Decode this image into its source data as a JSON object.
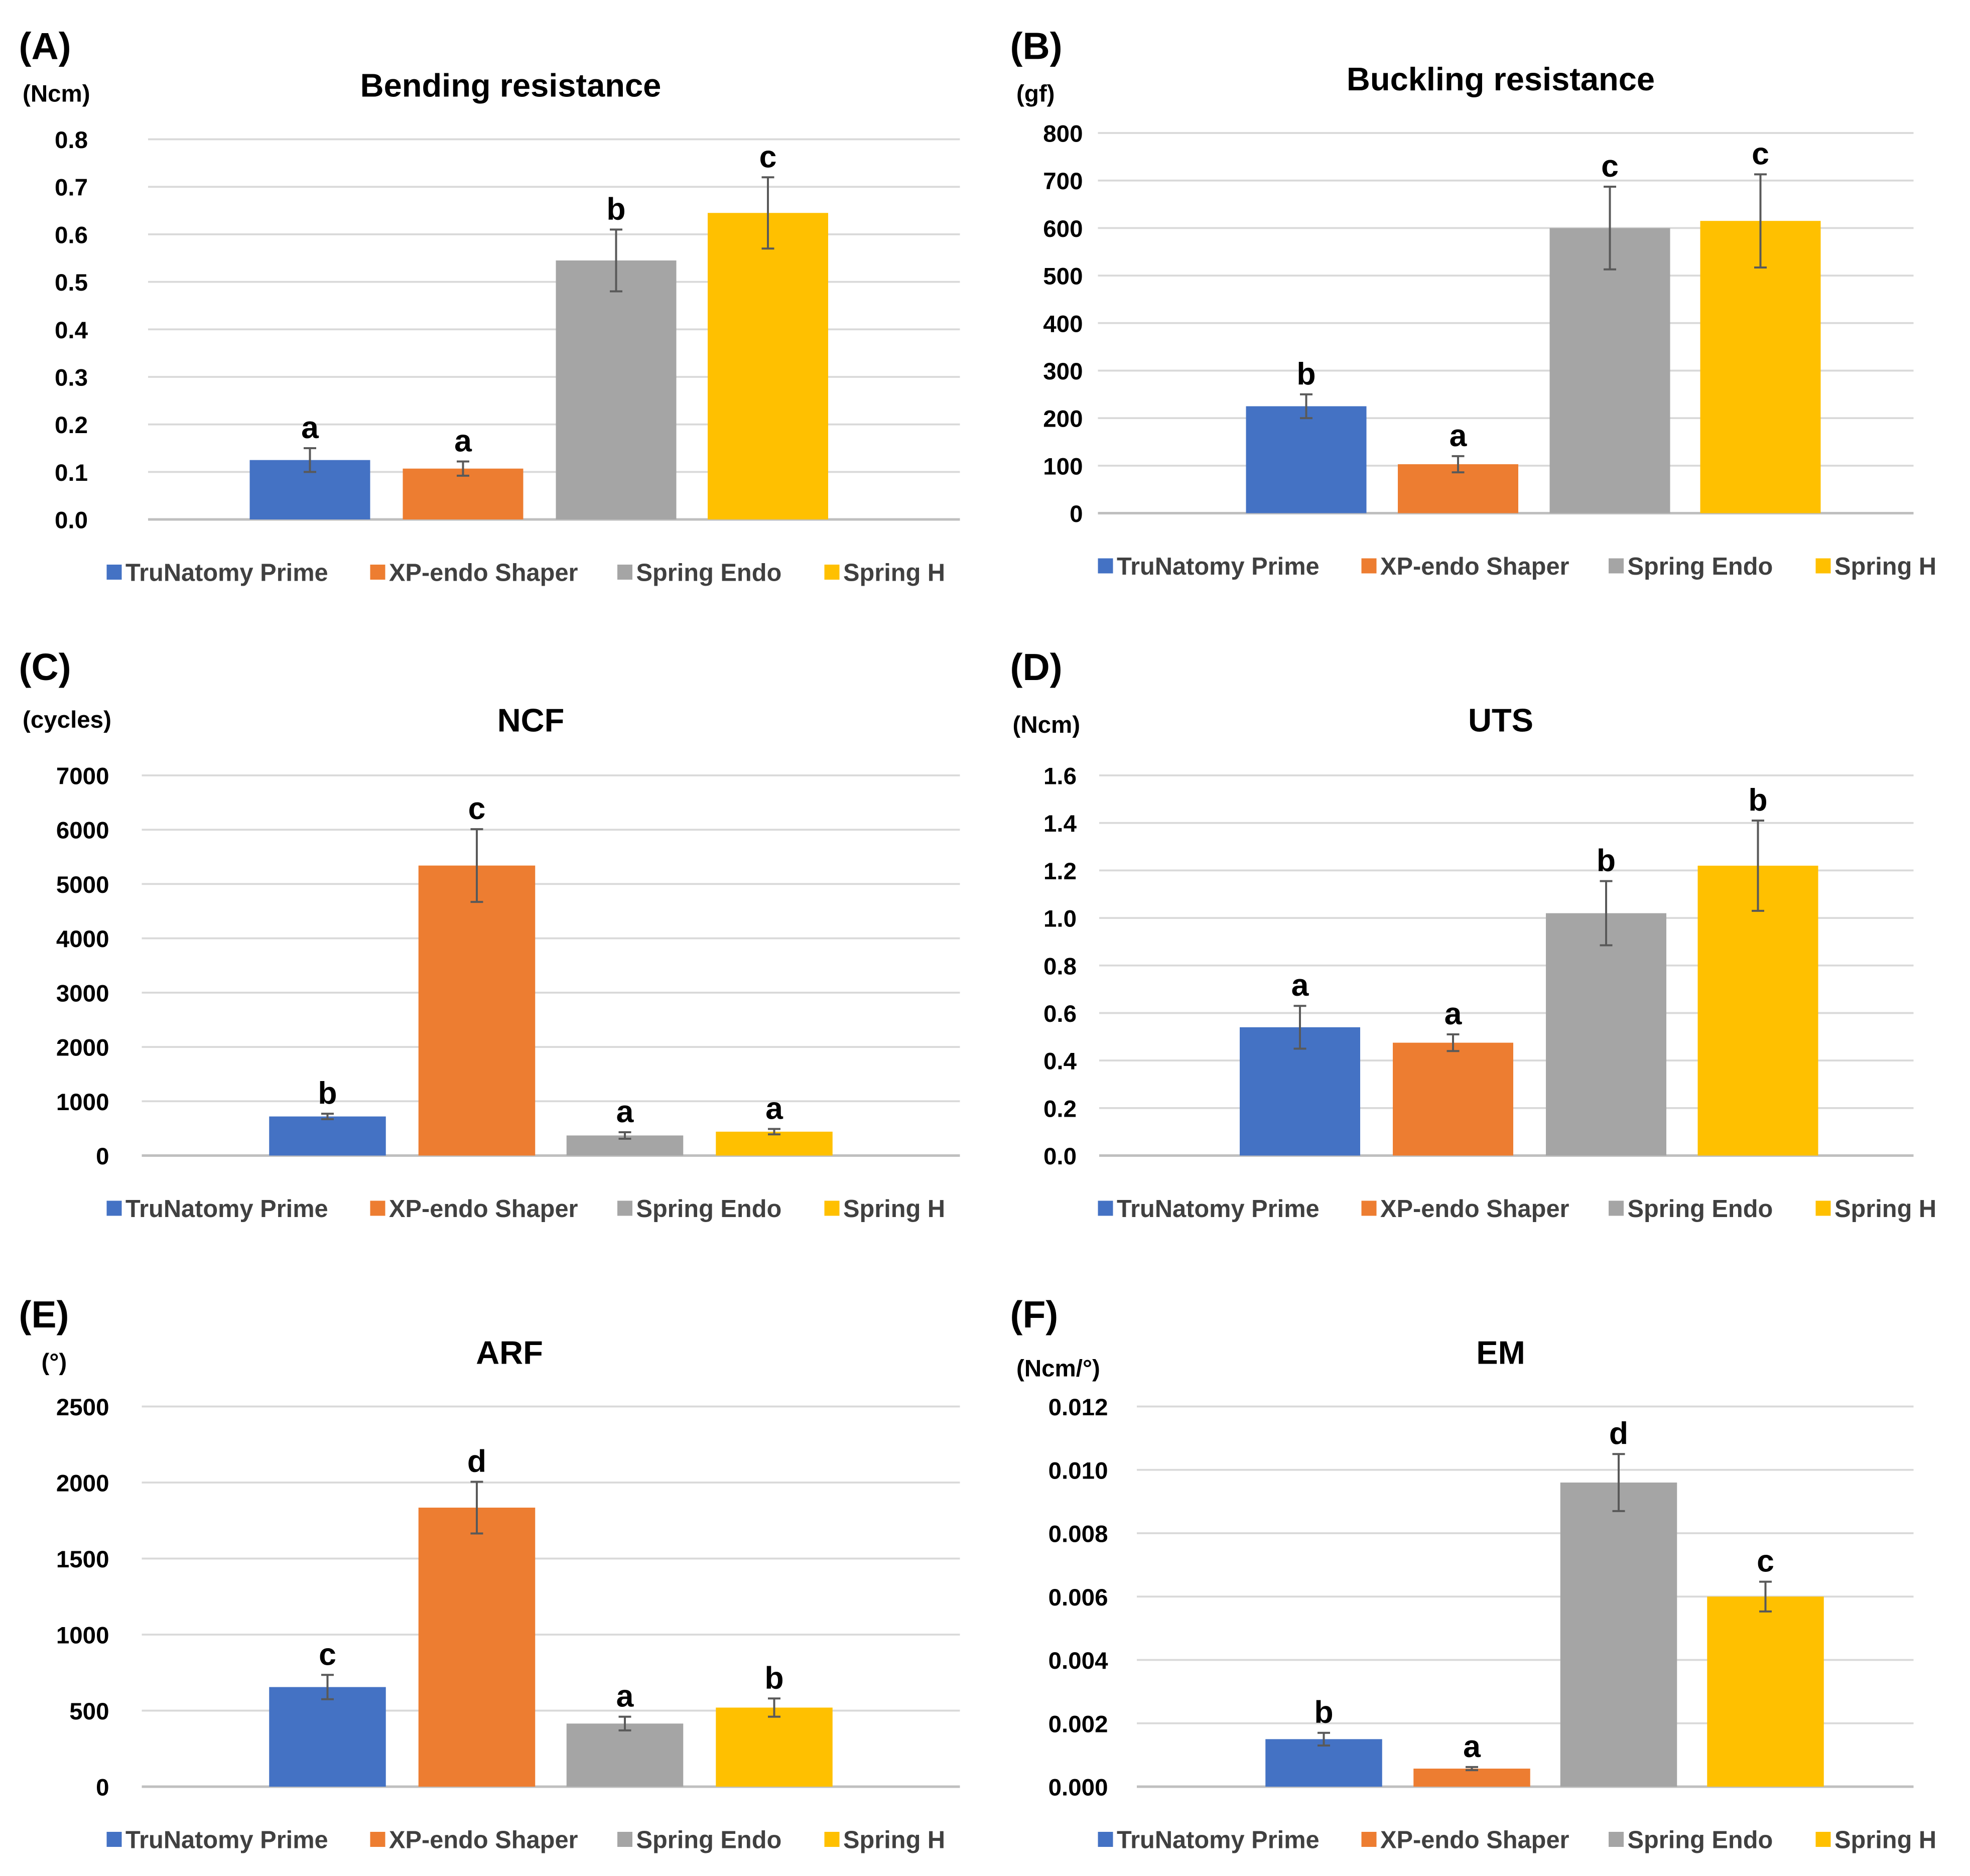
{
  "figure": {
    "legend_entries": [
      "TruNatomy Prime",
      "XP-endo Shaper",
      "Spring Endo",
      "Spring H"
    ],
    "series_colors": [
      "#4472C4",
      "#ED7D31",
      "#A5A5A5",
      "#FFC000"
    ],
    "gridline_color": "#D9D9D9",
    "axis_line_color": "#BFBFBF",
    "error_bar_color": "#595959",
    "text_color": "#000000"
  },
  "chart_data": [
    {
      "panel": "(A)",
      "type": "bar",
      "title": "Bending resistance",
      "unit": "(Ncm)",
      "categories": [
        "TruNatomy Prime",
        "XP-endo Shaper",
        "Spring Endo",
        "Spring H"
      ],
      "values": [
        0.125,
        0.107,
        0.545,
        0.645
      ],
      "errors": [
        0.025,
        0.015,
        0.065,
        0.075
      ],
      "letters": [
        "a",
        "a",
        "b",
        "c"
      ],
      "ylim": [
        0,
        0.8
      ],
      "ticks": [
        "0.0",
        "0.1",
        "0.2",
        "0.3",
        "0.4",
        "0.5",
        "0.6",
        "0.7",
        "0.8"
      ],
      "legend_position": "bottom"
    },
    {
      "panel": "(B)",
      "type": "bar",
      "title": "Buckling resistance",
      "unit": "(gf)",
      "categories": [
        "TruNatomy Prime",
        "XP-endo Shaper",
        "Spring Endo",
        "Spring H"
      ],
      "values": [
        225,
        103,
        600,
        615
      ],
      "errors": [
        25,
        17,
        87,
        98
      ],
      "letters": [
        "b",
        "a",
        "c",
        "c"
      ],
      "ylim": [
        0,
        800
      ],
      "ticks": [
        "0",
        "100",
        "200",
        "300",
        "400",
        "500",
        "600",
        "700",
        "800"
      ],
      "legend_position": "bottom"
    },
    {
      "panel": "(C)",
      "type": "bar",
      "title": "NCF",
      "unit": "(cycles)",
      "categories": [
        "TruNatomy Prime",
        "XP-endo Shaper",
        "Spring Endo",
        "Spring H"
      ],
      "values": [
        720,
        5340,
        370,
        440
      ],
      "errors": [
        50,
        670,
        60,
        50
      ],
      "letters": [
        "b",
        "c",
        "a",
        "a"
      ],
      "ylim": [
        0,
        7000
      ],
      "ticks": [
        "0",
        "1000",
        "2000",
        "3000",
        "4000",
        "5000",
        "6000",
        "7000"
      ],
      "legend_position": "bottom"
    },
    {
      "panel": "(D)",
      "type": "bar",
      "title": "UTS",
      "unit": "(Ncm)",
      "categories": [
        "TruNatomy Prime",
        "XP-endo Shaper",
        "Spring Endo",
        "Spring H"
      ],
      "values": [
        0.54,
        0.475,
        1.02,
        1.22
      ],
      "errors": [
        0.09,
        0.035,
        0.135,
        0.19
      ],
      "letters": [
        "a",
        "a",
        "b",
        "b"
      ],
      "ylim": [
        0,
        1.6
      ],
      "ticks": [
        "0.0",
        "0.2",
        "0.4",
        "0.6",
        "0.8",
        "1.0",
        "1.2",
        "1.4",
        "1.6"
      ],
      "legend_position": "bottom"
    },
    {
      "panel": "(E)",
      "type": "bar",
      "title": "ARF",
      "unit": "(°)",
      "categories": [
        "TruNatomy Prime",
        "XP-endo Shaper",
        "Spring Endo",
        "Spring H"
      ],
      "values": [
        655,
        1835,
        415,
        520
      ],
      "errors": [
        80,
        170,
        45,
        60
      ],
      "letters": [
        "c",
        "d",
        "a",
        "b"
      ],
      "ylim": [
        0,
        2500
      ],
      "ticks": [
        "0",
        "500",
        "1000",
        "1500",
        "2000",
        "2500"
      ],
      "legend_position": "bottom"
    },
    {
      "panel": "(F)",
      "type": "bar",
      "title": "EM",
      "unit": "(Ncm/°)",
      "categories": [
        "TruNatomy Prime",
        "XP-endo Shaper",
        "Spring Endo",
        "Spring H"
      ],
      "values": [
        0.0015,
        0.00057,
        0.0096,
        0.006
      ],
      "errors": [
        0.0002,
        5e-05,
        0.0009,
        0.00047
      ],
      "letters": [
        "b",
        "a",
        "d",
        "c"
      ],
      "ylim": [
        0,
        0.012
      ],
      "ticks": [
        "0.000",
        "0.002",
        "0.004",
        "0.006",
        "0.008",
        "0.010",
        "0.012"
      ],
      "legend_position": "bottom"
    }
  ]
}
